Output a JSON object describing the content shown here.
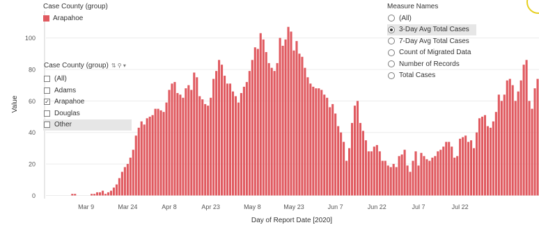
{
  "chart_data": {
    "type": "bar",
    "xlabel": "Day of Report Date [2020]",
    "ylabel": "Value",
    "ylim": [
      -2,
      117
    ],
    "yticks": [
      0,
      20,
      40,
      60,
      80,
      100
    ],
    "xticks": [
      "Mar 9",
      "Mar 24",
      "Apr 8",
      "Apr 23",
      "May 8",
      "May 23",
      "Jun 7",
      "Jun 22",
      "Jul 7",
      "Jul 22"
    ],
    "grid": "horizontal",
    "bar_color": "#e05a60",
    "series": [
      {
        "name": "Arapahoe",
        "start_date": "2020-02-24",
        "values": [
          0,
          0,
          0,
          0,
          0,
          0,
          0,
          0,
          0,
          1,
          1,
          0,
          0,
          0,
          0,
          0,
          1,
          1,
          2,
          2,
          3,
          1,
          2,
          3,
          5,
          7,
          11,
          15,
          18,
          20,
          24,
          29,
          38,
          43,
          47,
          45,
          49,
          50,
          51,
          55,
          55,
          54,
          53,
          59,
          67,
          71,
          72,
          65,
          64,
          62,
          68,
          70,
          67,
          78,
          75,
          63,
          61,
          58,
          57,
          62,
          74,
          79,
          86,
          83,
          76,
          71,
          71,
          66,
          63,
          59,
          65,
          69,
          72,
          79,
          86,
          94,
          93,
          103,
          99,
          91,
          84,
          81,
          79,
          84,
          100,
          95,
          99,
          107,
          104,
          92,
          98,
          90,
          88,
          81,
          75,
          71,
          69,
          68,
          68,
          67,
          64,
          62,
          56,
          58,
          52,
          44,
          40,
          34,
          22,
          30,
          46,
          57,
          60,
          46,
          41,
          35,
          28,
          28,
          31,
          32,
          28,
          22,
          22,
          19,
          18,
          20,
          18,
          25,
          26,
          29,
          19,
          15,
          22,
          28,
          19,
          27,
          25,
          23,
          22,
          24,
          25,
          28,
          29,
          31,
          34,
          34,
          31,
          24,
          25,
          36,
          37,
          38,
          34,
          35,
          30,
          40,
          49,
          50,
          51,
          44,
          43,
          47,
          53,
          64,
          60,
          64,
          73,
          74,
          70,
          60,
          66,
          73,
          83,
          86,
          60,
          55,
          68,
          74
        ],
        "data_labels": []
      }
    ]
  },
  "legend": {
    "title": "Case County (group)",
    "items": [
      {
        "label": "Arapahoe",
        "color": "#e05a60"
      }
    ]
  },
  "filter": {
    "title": "Case County (group)",
    "options": [
      {
        "label": "(All)",
        "checked": false
      },
      {
        "label": "Adams",
        "checked": false
      },
      {
        "label": "Arapahoe",
        "checked": true
      },
      {
        "label": "Douglas",
        "checked": false
      },
      {
        "label": "Other",
        "checked": false
      }
    ]
  },
  "measures": {
    "title": "Measure Names",
    "options": [
      {
        "label": "(All)",
        "selected": false
      },
      {
        "label": "3-Day Avg Total Cases",
        "selected": true
      },
      {
        "label": "7-Day Avg Total Cases",
        "selected": false
      },
      {
        "label": "Count of Migrated Data",
        "selected": false
      },
      {
        "label": "Number of Records",
        "selected": false
      },
      {
        "label": "Total Cases",
        "selected": false
      }
    ]
  }
}
